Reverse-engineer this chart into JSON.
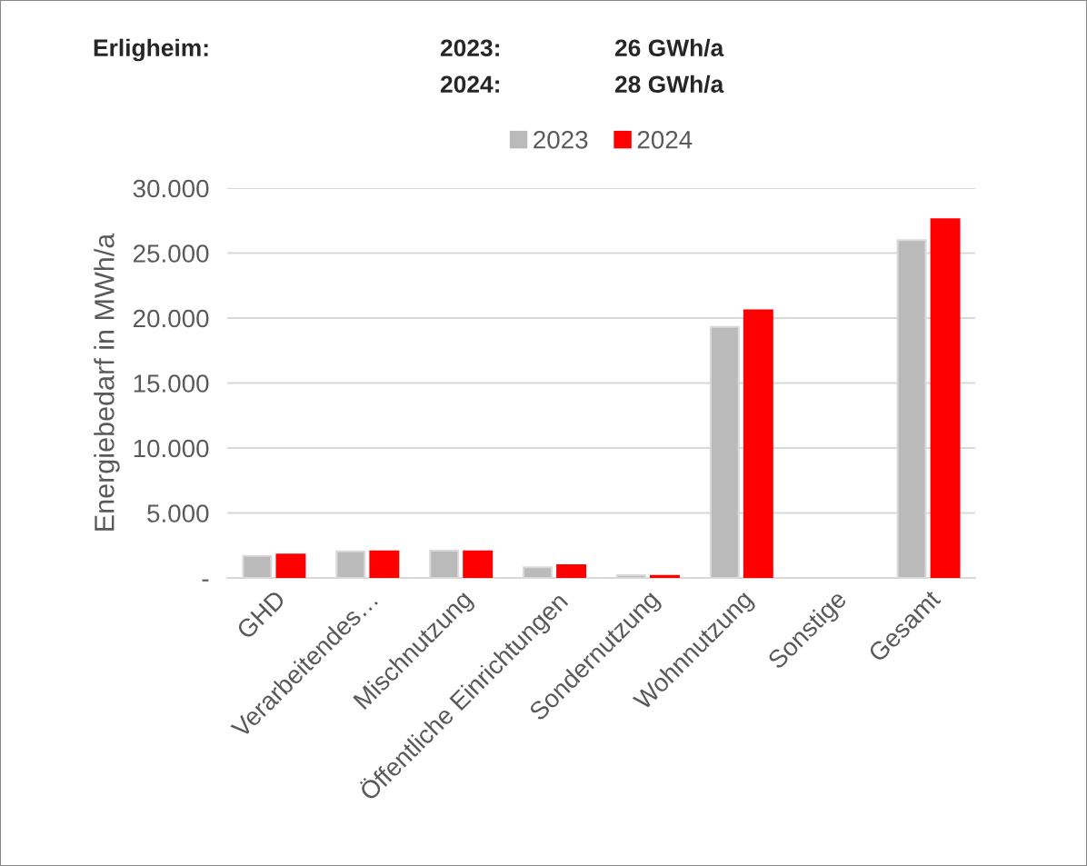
{
  "chart_data": {
    "type": "bar",
    "title": "Erligheim:",
    "annotations": [
      "2023:",
      "26 GWh/a",
      "2024:",
      "28 GWh/a"
    ],
    "ylabel": "Energiebedarf in MWh/a",
    "categories": [
      "GHD",
      "Verarbeitendes…",
      "Mischnutzung",
      "Öffentliche Einrichtungen",
      "Sondernutzung",
      "Wohnnutzung",
      "Sonstige",
      "Gesamt"
    ],
    "series": [
      {
        "name": "2023",
        "color": "#bababa",
        "values": [
          1700,
          2050,
          2100,
          820,
          210,
          19320,
          0,
          26000
        ]
      },
      {
        "name": "2024",
        "color": "#ff0000",
        "values": [
          1800,
          2050,
          2050,
          980,
          160,
          20600,
          0,
          27600
        ]
      }
    ],
    "ylim": [
      0,
      30000
    ],
    "yticks": [
      {
        "value": 0,
        "label": "-"
      },
      {
        "value": 5000,
        "label": "5.000"
      },
      {
        "value": 10000,
        "label": "10.000"
      },
      {
        "value": 15000,
        "label": "15.000"
      },
      {
        "value": 20000,
        "label": "20.000"
      },
      {
        "value": 25000,
        "label": "25.000"
      },
      {
        "value": 30000,
        "label": "30.000"
      }
    ],
    "grid": "y",
    "legend": "top"
  }
}
